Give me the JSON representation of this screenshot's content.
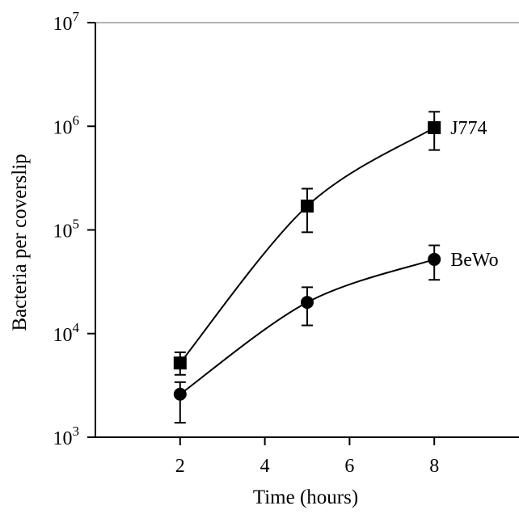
{
  "chart_data": {
    "type": "line",
    "xlabel": "Time (hours)",
    "ylabel": "Bacteria per coverslip",
    "y_scale": "log",
    "xlim": [
      0,
      10
    ],
    "ylim": [
      1000,
      10000000
    ],
    "x_ticks": [
      2,
      4,
      6,
      8
    ],
    "y_ticks": [
      {
        "value": 1000,
        "base": "10",
        "exp": "3"
      },
      {
        "value": 10000,
        "base": "10",
        "exp": "4"
      },
      {
        "value": 100000,
        "base": "10",
        "exp": "5"
      },
      {
        "value": 1000000,
        "base": "10",
        "exp": "6"
      },
      {
        "value": 10000000,
        "base": "10",
        "exp": "7"
      }
    ],
    "series": [
      {
        "name": "J774",
        "marker": "square",
        "points": [
          {
            "x": 2,
            "y": 5200,
            "err_low": 4000,
            "err_high": 6600
          },
          {
            "x": 5,
            "y": 170000,
            "err_low": 95000,
            "err_high": 250000
          },
          {
            "x": 8,
            "y": 970000,
            "err_low": 590000,
            "err_high": 1380000
          }
        ]
      },
      {
        "name": "BeWo",
        "marker": "circle",
        "points": [
          {
            "x": 2,
            "y": 2600,
            "err_low": 1380,
            "err_high": 3400
          },
          {
            "x": 5,
            "y": 20000,
            "err_low": 12000,
            "err_high": 28000
          },
          {
            "x": 8,
            "y": 52000,
            "err_low": 33000,
            "err_high": 71000
          }
        ]
      }
    ],
    "grid": false,
    "legend": "inline labels at right end of each series"
  }
}
